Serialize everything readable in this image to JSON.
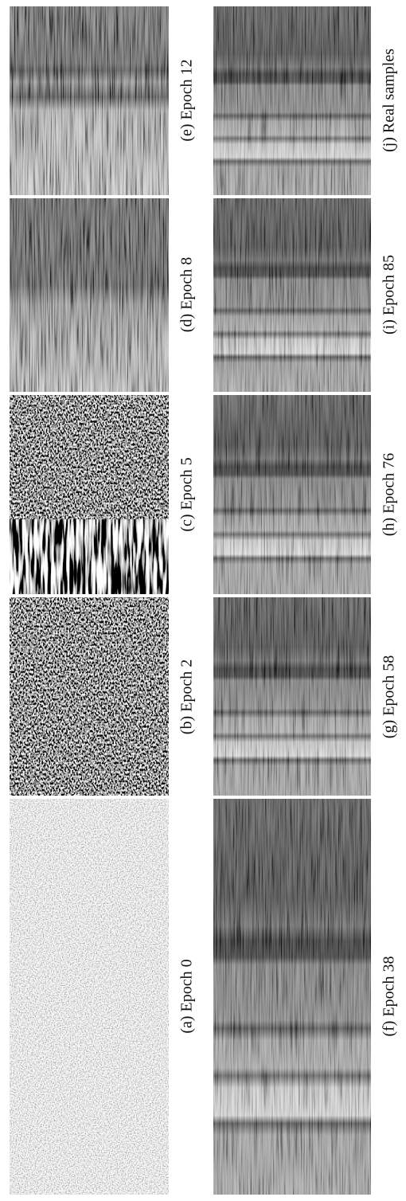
{
  "panels": [
    {
      "label": "(a) Epoch 0"
    },
    {
      "label": "(b) Epoch 2"
    },
    {
      "label": "(c) Epoch 5"
    },
    {
      "label": "(d) Epoch 8"
    },
    {
      "label": "(e) Epoch 12"
    },
    {
      "label": "(f) Epoch 38"
    },
    {
      "label": "(g) Epoch 58"
    },
    {
      "label": "(h) Epoch 76"
    },
    {
      "label": "(i) Epoch 85"
    },
    {
      "label": "(j) Real samples"
    }
  ]
}
